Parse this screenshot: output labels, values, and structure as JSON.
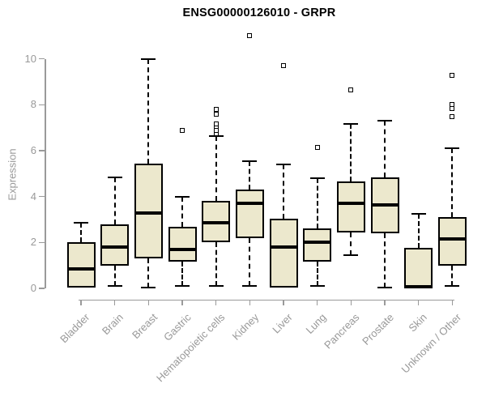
{
  "page": {
    "background": "#ffffff"
  },
  "colors": {
    "box_fill": "#ece8cd",
    "box_line": "#000000",
    "axis": "#9a9a9a",
    "tick_text": "#999999",
    "title_text": "#000000"
  },
  "chart_data": {
    "type": "boxplot",
    "title": "ENSG00000126010 - GRPR",
    "ylabel": "Expression",
    "xlabel": "",
    "ylim": [
      0,
      10
    ],
    "yticks": [
      0,
      2,
      4,
      6,
      8,
      10
    ],
    "grid": false,
    "legend": null,
    "marker": "open-square",
    "categories": [
      "Bladder",
      "Brain",
      "Breast",
      "Gastric",
      "Hematopoietic cells",
      "Kidney",
      "Liver",
      "Lung",
      "Pancreas",
      "Prostate",
      "Skin",
      "Unknown / Other"
    ],
    "series": [
      {
        "name": "Bladder",
        "whislo": 0.05,
        "q1": 0.05,
        "med": 0.85,
        "q3": 2.0,
        "whishi": 2.85,
        "outliers": []
      },
      {
        "name": "Brain",
        "whislo": 0.1,
        "q1": 1.0,
        "med": 1.8,
        "q3": 2.8,
        "whishi": 4.85,
        "outliers": []
      },
      {
        "name": "Breast",
        "whislo": 0.05,
        "q1": 1.3,
        "med": 3.3,
        "q3": 5.45,
        "whishi": 10.0,
        "outliers": []
      },
      {
        "name": "Gastric",
        "whislo": 0.1,
        "q1": 1.15,
        "med": 1.7,
        "q3": 2.7,
        "whishi": 4.0,
        "outliers": [
          6.9
        ]
      },
      {
        "name": "Hematopoietic cells",
        "whislo": 0.1,
        "q1": 2.0,
        "med": 2.85,
        "q3": 3.8,
        "whishi": 6.65,
        "outliers": [
          6.75,
          6.9,
          7.05,
          7.15,
          7.6,
          7.8
        ]
      },
      {
        "name": "Kidney",
        "whislo": 0.1,
        "q1": 2.2,
        "med": 3.7,
        "q3": 4.3,
        "whishi": 5.55,
        "outliers": [
          11.0
        ]
      },
      {
        "name": "Liver",
        "whislo": 0.05,
        "q1": 0.05,
        "med": 1.8,
        "q3": 3.05,
        "whishi": 5.4,
        "outliers": [
          9.7
        ]
      },
      {
        "name": "Lung",
        "whislo": 0.1,
        "q1": 1.15,
        "med": 2.0,
        "q3": 2.6,
        "whishi": 4.8,
        "outliers": [
          6.15
        ]
      },
      {
        "name": "Pancreas",
        "whislo": 1.45,
        "q1": 2.45,
        "med": 3.7,
        "q3": 4.65,
        "whishi": 7.15,
        "outliers": [
          8.65
        ]
      },
      {
        "name": "Prostate",
        "whislo": 0.05,
        "q1": 2.4,
        "med": 3.65,
        "q3": 4.85,
        "whishi": 7.3,
        "outliers": []
      },
      {
        "name": "Skin",
        "whislo": 0.0,
        "q1": 0.0,
        "med": 0.07,
        "q3": 1.75,
        "whishi": 3.25,
        "outliers": []
      },
      {
        "name": "Unknown / Other",
        "whislo": 0.1,
        "q1": 1.0,
        "med": 2.15,
        "q3": 3.1,
        "whishi": 6.1,
        "outliers": [
          7.5,
          7.85,
          8.0,
          9.3
        ]
      }
    ]
  }
}
